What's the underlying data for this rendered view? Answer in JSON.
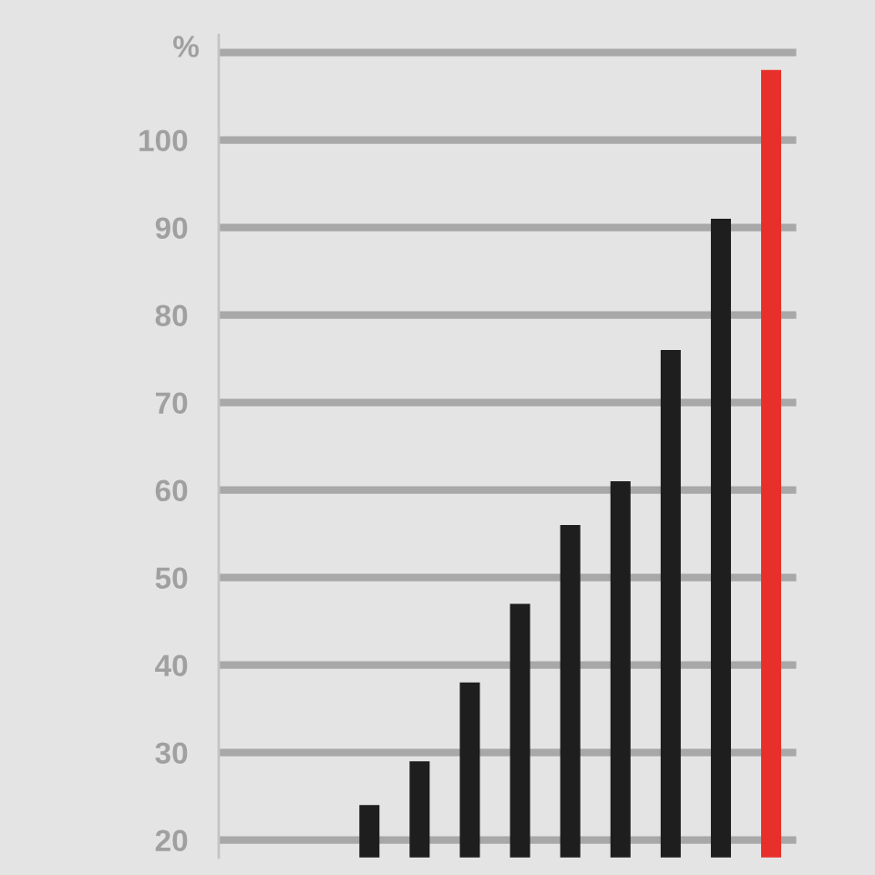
{
  "chart_data": {
    "type": "bar",
    "ylabel": "%",
    "categories": [
      null,
      null,
      null,
      null,
      null,
      null,
      null,
      null,
      null
    ],
    "values": [
      24,
      29,
      38,
      47,
      56,
      61,
      76,
      91,
      108
    ],
    "colors": [
      "#1e1e1e",
      "#1e1e1e",
      "#1e1e1e",
      "#1e1e1e",
      "#1e1e1e",
      "#1e1e1e",
      "#1e1e1e",
      "#1e1e1e",
      "#e8302a"
    ],
    "ylim": [
      18,
      112
    ],
    "yticks": [
      20,
      30,
      40,
      50,
      60,
      70,
      80,
      90,
      100,
      {
        "value": 110,
        "label": null
      }
    ],
    "grid": "y",
    "tick_labels": "y"
  }
}
